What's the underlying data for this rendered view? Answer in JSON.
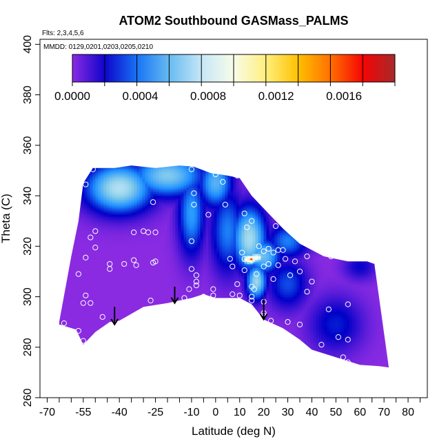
{
  "chart_data": {
    "type": "heatmap",
    "title": "ATOM2 Southbound GASMass_PALMS",
    "flights_note": "Flts: 2,3,4,5,6",
    "dates_note": "MMDD: 0129,0201,0203,0205,0210",
    "xlabel": "Latitude (deg N)",
    "ylabel": "Theta (C)",
    "xlim": [
      -73,
      88
    ],
    "ylim": [
      260,
      402
    ],
    "x_ticks": [
      -70,
      -55,
      -40,
      -25,
      -10,
      0,
      10,
      20,
      30,
      40,
      50,
      60,
      70,
      80
    ],
    "x_minor_ticks": [
      -65,
      -60,
      -50,
      -45,
      -35,
      -30,
      -20,
      -15,
      -5,
      5,
      15,
      25,
      35,
      45,
      55,
      65,
      75,
      85
    ],
    "y_ticks": [
      260,
      280,
      300,
      320,
      340,
      360,
      380,
      400
    ],
    "colorbar": {
      "range": [
        0,
        0.0019
      ],
      "tick_values": [
        0,
        0.0004,
        0.0008,
        0.0012,
        0.0016
      ],
      "tick_labels": [
        "0.0000",
        "0.0004",
        "0.0008",
        "0.0012",
        "0.0016"
      ],
      "colors": [
        "#8a2be2",
        "#0000c8",
        "#1e90ff",
        "#87ceeb",
        "#f0f8ff",
        "#ffffd0",
        "#ffd700",
        "#ff8c00",
        "#ff0000",
        "#a52a2a"
      ]
    },
    "domain_lower": [
      [
        -65,
        289
      ],
      [
        -58,
        287
      ],
      [
        -55,
        281
      ],
      [
        -50,
        286
      ],
      [
        -44,
        290
      ],
      [
        -40,
        290.5
      ],
      [
        -30,
        296
      ],
      [
        -20,
        297.5
      ],
      [
        -10,
        299.5
      ],
      [
        -5,
        301
      ],
      [
        0,
        299.5
      ],
      [
        10,
        299.5
      ],
      [
        15,
        297
      ],
      [
        20,
        291
      ],
      [
        28,
        287.5
      ],
      [
        35,
        283
      ],
      [
        40,
        279
      ],
      [
        50,
        276
      ],
      [
        60,
        273
      ],
      [
        68,
        272.5
      ]
    ],
    "domain_upper": [
      [
        -65,
        290
      ],
      [
        -60,
        316
      ],
      [
        -57,
        330
      ],
      [
        -55,
        345
      ],
      [
        -51,
        351
      ],
      [
        -42,
        351
      ],
      [
        -35,
        352
      ],
      [
        -25,
        351
      ],
      [
        -15,
        352
      ],
      [
        -9,
        351.5
      ],
      [
        -2,
        349
      ],
      [
        5,
        348
      ],
      [
        10,
        347
      ],
      [
        15,
        340
      ],
      [
        20,
        335
      ],
      [
        28,
        327
      ],
      [
        35,
        321
      ],
      [
        45,
        316
      ],
      [
        55,
        314
      ],
      [
        63,
        314
      ],
      [
        66,
        313
      ],
      [
        72,
        272
      ]
    ],
    "hotspots": [
      {
        "lat": -40,
        "theta": 343,
        "value": 0.00072,
        "sigma": [
          10,
          7
        ]
      },
      {
        "lat": -20,
        "theta": 348,
        "value": 0.00062,
        "sigma": [
          11,
          6
        ]
      },
      {
        "lat": -10,
        "theta": 333,
        "value": 0.00046,
        "sigma": [
          4,
          12
        ]
      },
      {
        "lat": 0,
        "theta": 345,
        "value": 0.00054,
        "sigma": [
          5,
          7
        ]
      },
      {
        "lat": 5,
        "theta": 326,
        "value": 0.0004,
        "sigma": [
          5,
          12
        ]
      },
      {
        "lat": 14,
        "theta": 323,
        "value": 0.0007,
        "sigma": [
          5,
          9
        ]
      },
      {
        "lat": 17,
        "theta": 306,
        "value": 0.00068,
        "sigma": [
          3,
          5
        ]
      },
      {
        "lat": 20,
        "theta": 316,
        "value": 0.00058,
        "sigma": [
          5,
          5
        ]
      },
      {
        "lat": 30,
        "theta": 322,
        "value": 0.0004,
        "sigma": [
          6,
          5
        ]
      },
      {
        "lat": 30,
        "theta": 305,
        "value": 0.00032,
        "sigma": [
          6,
          7
        ]
      },
      {
        "lat": 50,
        "theta": 289,
        "value": 0.00025,
        "sigma": [
          8,
          8
        ]
      },
      {
        "lat": 60,
        "theta": 312,
        "value": 0.0002,
        "sigma": [
          5,
          4
        ]
      },
      {
        "lat": 15,
        "theta": 314.8,
        "value": 0.0016,
        "sigma": [
          1.0,
          0.8
        ]
      },
      {
        "lat": 14,
        "theta": 314.8,
        "value": 0.0011,
        "sigma": [
          2.2,
          1.5
        ]
      },
      {
        "lat": 17,
        "theta": 315.5,
        "value": 0.00095,
        "sigma": [
          2.5,
          1.5
        ]
      }
    ],
    "observation_points": [
      [
        -51,
        350.5
      ],
      [
        -54,
        344.5
      ],
      [
        -26,
        337.5
      ],
      [
        -10,
        350.5
      ],
      [
        -9,
        341
      ],
      [
        -9,
        336.5
      ],
      [
        -3,
        332.5
      ],
      [
        0,
        348.5
      ],
      [
        3,
        345.5
      ],
      [
        4,
        336.5
      ],
      [
        8,
        348.5
      ],
      [
        9,
        348
      ],
      [
        12,
        333
      ],
      [
        13,
        327.5
      ],
      [
        15,
        330
      ],
      [
        25,
        328
      ],
      [
        -50,
        326
      ],
      [
        -52,
        323.5
      ],
      [
        -50,
        319.5
      ],
      [
        -54,
        315.5
      ],
      [
        -34,
        325.5
      ],
      [
        -30,
        326
      ],
      [
        -28,
        325.5
      ],
      [
        -25,
        325.5
      ],
      [
        -10,
        322
      ],
      [
        6,
        315
      ],
      [
        7,
        312
      ],
      [
        11,
        317.5
      ],
      [
        12,
        315
      ],
      [
        15,
        314.5
      ],
      [
        18,
        320
      ],
      [
        20,
        318
      ],
      [
        22,
        319
      ],
      [
        24,
        317.5
      ],
      [
        26,
        318.5
      ],
      [
        28,
        318.5
      ],
      [
        -44,
        313
      ],
      [
        -44,
        311
      ],
      [
        -38,
        313
      ],
      [
        -34,
        314.5
      ],
      [
        -33,
        312.5
      ],
      [
        -26,
        313.5
      ],
      [
        -25,
        314
      ],
      [
        -10,
        311
      ],
      [
        -8,
        308.5
      ],
      [
        -8,
        306
      ],
      [
        -8,
        304.5
      ],
      [
        -1,
        303
      ],
      [
        -1,
        300.5
      ],
      [
        -5,
        300
      ],
      [
        -11,
        303
      ],
      [
        12,
        310.5
      ],
      [
        17,
        309
      ],
      [
        16,
        303
      ],
      [
        20,
        312
      ],
      [
        22,
        313
      ],
      [
        24,
        307
      ],
      [
        26,
        312.5
      ],
      [
        29,
        315
      ],
      [
        31,
        308.5
      ],
      [
        33,
        314
      ],
      [
        35,
        310
      ],
      [
        38,
        302
      ],
      [
        38,
        316
      ],
      [
        40,
        306
      ],
      [
        40,
        322
      ],
      [
        48,
        316
      ],
      [
        51,
        317
      ],
      [
        -57,
        309
      ],
      [
        -54,
        300.5
      ],
      [
        -52,
        297.5
      ],
      [
        -55,
        297.5
      ],
      [
        -47,
        292
      ],
      [
        -27,
        298.5
      ],
      [
        -28,
        294.5
      ],
      [
        -13,
        299.5
      ],
      [
        9,
        305
      ],
      [
        15,
        304
      ],
      [
        7,
        301
      ],
      [
        10,
        300.5
      ],
      [
        15,
        300
      ],
      [
        15,
        298.5
      ],
      [
        23,
        290.5
      ],
      [
        20,
        293.5
      ],
      [
        20,
        292.5
      ],
      [
        20,
        298
      ],
      [
        30,
        290
      ],
      [
        35,
        289
      ],
      [
        47,
        295
      ],
      [
        44,
        281
      ],
      [
        55,
        297
      ],
      [
        55,
        283
      ],
      [
        51,
        284
      ],
      [
        53,
        276
      ],
      [
        55,
        274
      ],
      [
        56,
        273
      ],
      [
        -55,
        282.5
      ],
      [
        -57,
        286.5
      ],
      [
        -63,
        289.5
      ]
    ],
    "arrows": [
      {
        "lat": -42,
        "theta_top": 296,
        "theta_tip": 289
      },
      {
        "lat": -17,
        "theta_top": 304,
        "theta_tip": 297.5
      },
      {
        "lat": 20,
        "theta_top": 299,
        "theta_tip": 291
      }
    ]
  }
}
